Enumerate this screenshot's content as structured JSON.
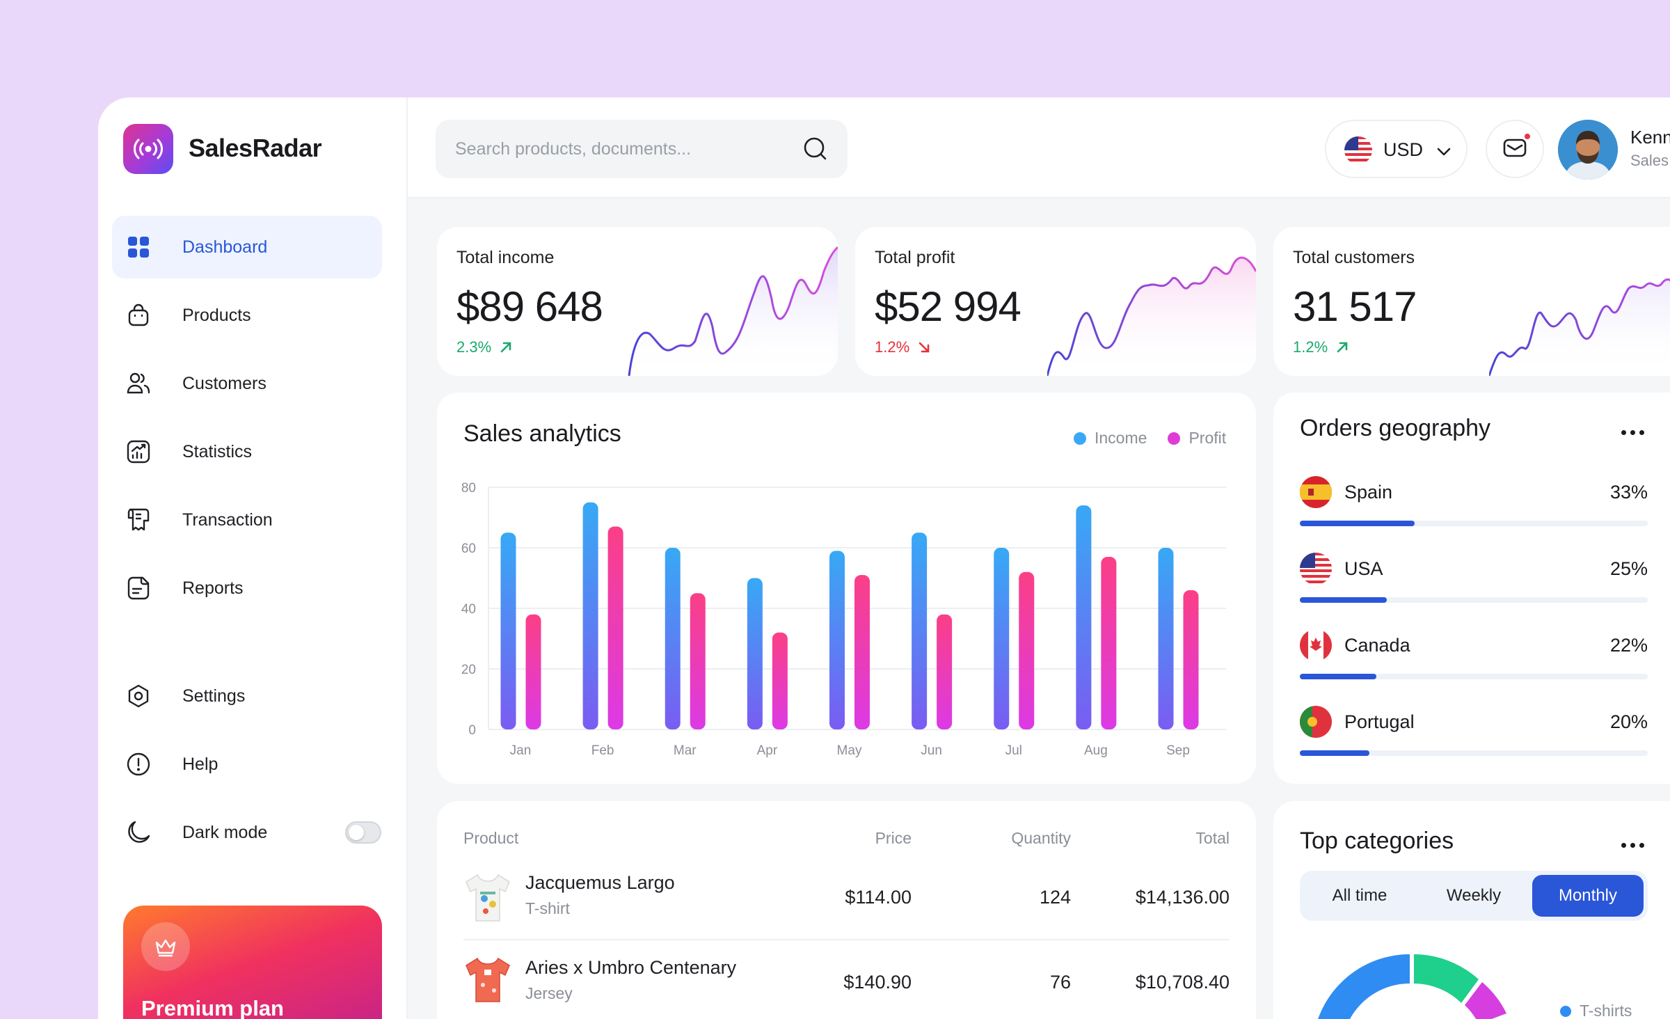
{
  "app": {
    "name": "SalesRadar"
  },
  "sidebar": {
    "items": [
      {
        "label": "Dashboard",
        "icon": "grid-icon",
        "active": true
      },
      {
        "label": "Products",
        "icon": "bag-icon"
      },
      {
        "label": "Customers",
        "icon": "users-icon"
      },
      {
        "label": "Statistics",
        "icon": "chart-icon"
      },
      {
        "label": "Transaction",
        "icon": "receipt-icon"
      },
      {
        "label": "Reports",
        "icon": "document-icon"
      }
    ],
    "bottom_items": [
      {
        "label": "Settings",
        "icon": "settings-icon"
      },
      {
        "label": "Help",
        "icon": "alert-circle-icon"
      },
      {
        "label": "Dark mode",
        "icon": "moon-icon",
        "toggle": false
      }
    ],
    "premium": {
      "label": "Premium plan",
      "icon": "crown-icon"
    }
  },
  "topbar": {
    "search_placeholder": "Search products, documents...",
    "currency": "USD",
    "user": {
      "name": "Kenneth Mendoza",
      "role": "Sales manager"
    }
  },
  "stats": [
    {
      "title": "Total income",
      "value": "$89 648",
      "change": "2.3%",
      "trend": "up"
    },
    {
      "title": "Total profit",
      "value": "$52 994",
      "change": "1.2%",
      "trend": "down"
    },
    {
      "title": "Total customers",
      "value": "31 517",
      "change": "1.2%",
      "trend": "up"
    }
  ],
  "sales": {
    "title": "Sales analytics",
    "legend": {
      "income": "Income",
      "profit": "Profit"
    }
  },
  "chart_data": {
    "type": "bar",
    "title": "Sales analytics",
    "categories": [
      "Jan",
      "Feb",
      "Mar",
      "Apr",
      "May",
      "Jun",
      "Jul",
      "Aug",
      "Sep"
    ],
    "series": [
      {
        "name": "Income",
        "values": [
          65,
          75,
          60,
          50,
          59,
          65,
          60,
          74,
          60
        ]
      },
      {
        "name": "Profit",
        "values": [
          38,
          67,
          45,
          32,
          51,
          38,
          52,
          57,
          46
        ]
      }
    ],
    "yticks": [
      "0",
      "20",
      "40",
      "60",
      "80"
    ],
    "ylim": [
      0,
      83
    ],
    "grid": true,
    "legend_position": "top-right",
    "colors": {
      "income": "#3aa8f7",
      "profit": "#f53b9e"
    }
  },
  "geography": {
    "title": "Orders geography",
    "rows": [
      {
        "country": "Spain",
        "pct": "33%",
        "value": 0.33
      },
      {
        "country": "USA",
        "pct": "25%",
        "value": 0.25
      },
      {
        "country": "Canada",
        "pct": "22%",
        "value": 0.22
      },
      {
        "country": "Portugal",
        "pct": "20%",
        "value": 0.2
      }
    ]
  },
  "products_table": {
    "headers": {
      "product": "Product",
      "price": "Price",
      "quantity": "Quantity",
      "total": "Total"
    },
    "rows": [
      {
        "name": "Jacquemus Largo",
        "type": "T-shirt",
        "price": "$114.00",
        "quantity": "124",
        "total": "$14,136.00"
      },
      {
        "name": "Aries x Umbro Centenary",
        "type": "Jersey",
        "price": "$140.90",
        "quantity": "76",
        "total": "$10,708.40"
      }
    ]
  },
  "categories": {
    "title": "Top categories",
    "tabs": [
      "All time",
      "Weekly",
      "Monthly"
    ],
    "active_tab": "Monthly",
    "legend": [
      "T-shirts"
    ]
  }
}
